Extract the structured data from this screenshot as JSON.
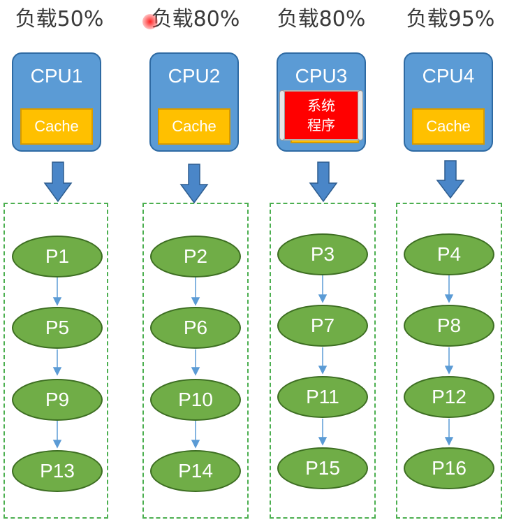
{
  "columns": [
    {
      "load": "负载50%",
      "cpu": "CPU1",
      "cache": "Cache",
      "processes": [
        "P1",
        "P5",
        "P9",
        "P13"
      ]
    },
    {
      "load": "负载80%",
      "cpu": "CPU2",
      "cache": "Cache",
      "processes": [
        "P2",
        "P6",
        "P10",
        "P14"
      ]
    },
    {
      "load": "负载80%",
      "cpu": "CPU3",
      "cache": "",
      "system_program": [
        "系统",
        "程序"
      ],
      "processes": [
        "P3",
        "P7",
        "P11",
        "P15"
      ]
    },
    {
      "load": "负载95%",
      "cpu": "CPU4",
      "cache": "Cache",
      "processes": [
        "P4",
        "P8",
        "P12",
        "P16"
      ]
    }
  ],
  "colors": {
    "cpu": "#5b9bd5",
    "cache": "#ffc000",
    "process": "#70ad47",
    "column_border": "#4caf50",
    "arrow": "#4a86c8",
    "system_program": "#ff0000",
    "pointer_glow": "#ff2020"
  }
}
